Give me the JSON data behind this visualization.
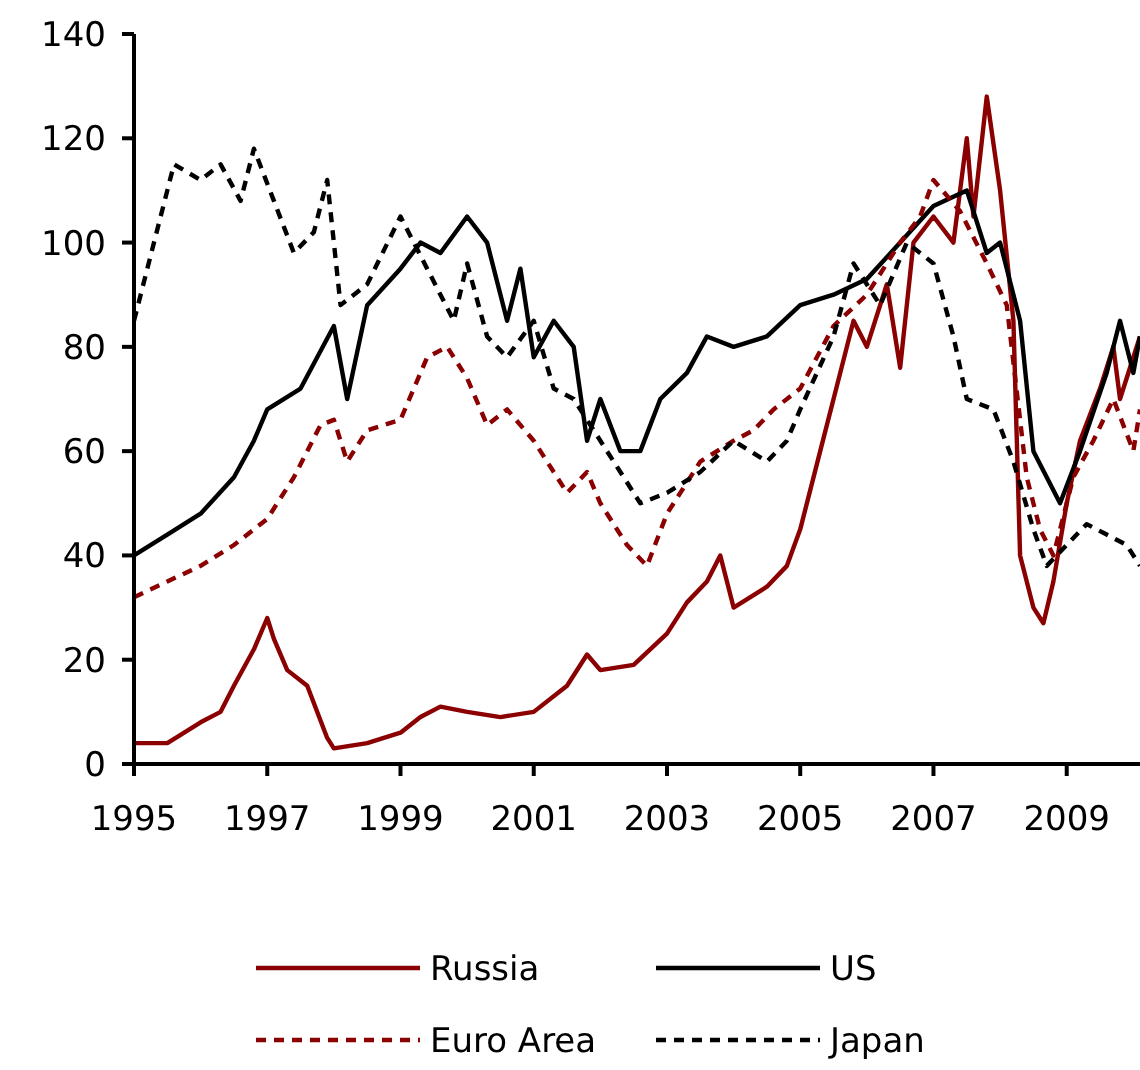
{
  "chart_data": {
    "type": "line",
    "xlim": [
      1995,
      2010.1
    ],
    "xticks": [
      1995,
      1997,
      1999,
      2001,
      2003,
      2005,
      2007,
      2009
    ],
    "ylim": [
      0,
      140
    ],
    "yticks": [
      0,
      20,
      40,
      60,
      80,
      100,
      120,
      140
    ],
    "legend": "bottom",
    "grid": false,
    "series": [
      {
        "name": "Russia",
        "color": "#8b0000",
        "line_style": "solid",
        "x": [
          1995,
          1995.5,
          1996,
          1996.3,
          1996.5,
          1996.8,
          1997,
          1997.1,
          1997.3,
          1997.6,
          1997.9,
          1998,
          1998.5,
          1999,
          1999.3,
          1999.6,
          2000,
          2000.5,
          2001,
          2001.5,
          2001.8,
          2002,
          2002.5,
          2003,
          2003.3,
          2003.6,
          2003.8,
          2004,
          2004.5,
          2004.8,
          2005,
          2005.3,
          2005.6,
          2005.8,
          2006,
          2006.3,
          2006.5,
          2006.7,
          2007,
          2007.3,
          2007.5,
          2007.6,
          2007.8,
          2008,
          2008.2,
          2008.3,
          2008.5,
          2008.65,
          2008.8,
          2009,
          2009.2,
          2009.5,
          2009.7,
          2009.8,
          2010,
          2010.1
        ],
        "values": [
          4,
          4,
          8,
          10,
          15,
          22,
          28,
          24,
          18,
          15,
          5,
          3,
          4,
          6,
          9,
          11,
          10,
          9,
          10,
          15,
          21,
          18,
          19,
          25,
          31,
          35,
          40,
          30,
          34,
          38,
          45,
          60,
          75,
          85,
          80,
          92,
          76,
          100,
          105,
          100,
          120,
          105,
          128,
          110,
          85,
          40,
          30,
          27,
          35,
          50,
          62,
          72,
          80,
          70,
          78,
          82
        ]
      },
      {
        "name": "US",
        "color": "#000000",
        "line_style": "solid",
        "x": [
          1995,
          1995.5,
          1996,
          1996.5,
          1996.8,
          1997,
          1997.5,
          1998,
          1998.2,
          1998.5,
          1999,
          1999.3,
          1999.6,
          2000,
          2000.3,
          2000.6,
          2000.8,
          2001,
          2001.3,
          2001.6,
          2001.8,
          2002,
          2002.3,
          2002.6,
          2002.9,
          2003.3,
          2003.6,
          2004,
          2004.5,
          2005,
          2005.5,
          2006,
          2006.5,
          2007,
          2007.5,
          2007.8,
          2008,
          2008.3,
          2008.5,
          2008.7,
          2008.9,
          2009.2,
          2009.6,
          2009.8,
          2010,
          2010.1
        ],
        "values": [
          40,
          44,
          48,
          55,
          62,
          68,
          72,
          84,
          70,
          88,
          95,
          100,
          98,
          105,
          100,
          85,
          95,
          78,
          85,
          80,
          62,
          70,
          60,
          60,
          70,
          75,
          82,
          80,
          82,
          88,
          90,
          93,
          100,
          107,
          110,
          98,
          100,
          85,
          60,
          55,
          50,
          60,
          75,
          85,
          75,
          82
        ]
      },
      {
        "name": "Euro Area",
        "color": "#8b0000",
        "line_style": "dashed",
        "x": [
          1995,
          1995.5,
          1996,
          1996.5,
          1997,
          1997.4,
          1997.8,
          1998,
          1998.2,
          1998.5,
          1999,
          1999.4,
          1999.7,
          2000,
          2000.3,
          2000.6,
          2001,
          2001.5,
          2001.8,
          2002,
          2002.4,
          2002.7,
          2003,
          2003.5,
          2004,
          2004.3,
          2004.6,
          2005,
          2005.5,
          2006,
          2006.5,
          2006.8,
          2007,
          2007.4,
          2007.8,
          2008.1,
          2008.4,
          2008.6,
          2008.8,
          2009.1,
          2009.4,
          2009.7,
          2010,
          2010.1
        ],
        "values": [
          32,
          35,
          38,
          42,
          47,
          55,
          65,
          66,
          58,
          64,
          66,
          78,
          80,
          74,
          65,
          68,
          62,
          52,
          56,
          50,
          42,
          38,
          48,
          58,
          62,
          64,
          68,
          72,
          84,
          90,
          100,
          105,
          112,
          106,
          96,
          88,
          55,
          45,
          40,
          55,
          62,
          70,
          60,
          68
        ]
      },
      {
        "name": "Japan",
        "color": "#000000",
        "line_style": "dashed",
        "x": [
          1995,
          1995.3,
          1995.6,
          1996,
          1996.3,
          1996.6,
          1996.8,
          1997.1,
          1997.4,
          1997.7,
          1997.9,
          1998.1,
          1998.5,
          1999,
          1999.4,
          1999.8,
          2000,
          2000.3,
          2000.6,
          2001,
          2001.3,
          2001.6,
          2002,
          2002.3,
          2002.6,
          2003,
          2003.5,
          2004,
          2004.5,
          2004.8,
          2005,
          2005.5,
          2005.8,
          2006.2,
          2006.6,
          2007,
          2007.3,
          2007.5,
          2007.9,
          2008.2,
          2008.5,
          2008.7,
          2009,
          2009.3,
          2009.6,
          2009.9,
          2010.1
        ],
        "values": [
          85,
          100,
          115,
          112,
          115,
          108,
          118,
          108,
          98,
          102,
          112,
          88,
          92,
          105,
          95,
          85,
          96,
          82,
          78,
          85,
          72,
          70,
          62,
          56,
          50,
          52,
          56,
          62,
          58,
          62,
          68,
          82,
          96,
          88,
          100,
          96,
          82,
          70,
          68,
          58,
          45,
          38,
          42,
          46,
          44,
          42,
          38
        ]
      }
    ]
  }
}
